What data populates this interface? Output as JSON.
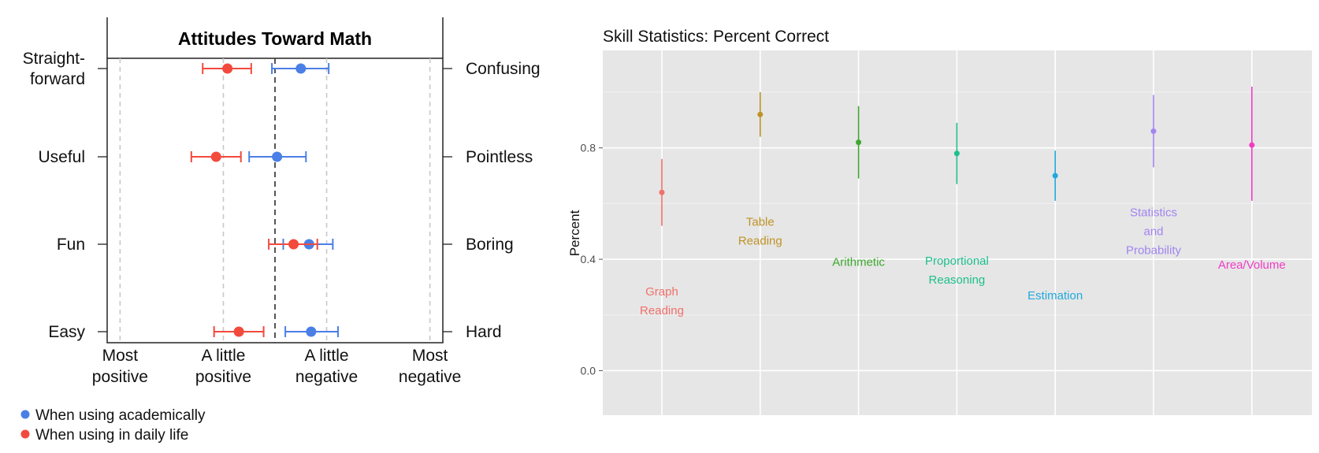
{
  "chart_data": [
    {
      "type": "dot-errorbar",
      "title": "Attitudes Toward Math",
      "left_labels": [
        "Straight-\nforward",
        "Useful",
        "Fun",
        "Easy"
      ],
      "right_labels": [
        "Confusing",
        "Pointless",
        "Boring",
        "Hard"
      ],
      "x_ticks": [
        {
          "value": 1,
          "label": "Most\npositive"
        },
        {
          "value": 2,
          "label": "A little\npositive"
        },
        {
          "value": 3,
          "label": "A little\nnegative"
        },
        {
          "value": 4,
          "label": "Most\nnegative"
        }
      ],
      "xlim": [
        0.875,
        4.125
      ],
      "midline": 2.5,
      "series": [
        {
          "name": "When using academically",
          "color": "#4a7fe6",
          "values": [
            2.75,
            2.52,
            2.83,
            2.85
          ],
          "lower": [
            2.47,
            2.25,
            2.58,
            2.6
          ],
          "upper": [
            3.02,
            2.8,
            3.06,
            3.11
          ]
        },
        {
          "name": "When using in daily life",
          "color": "#f24a3d",
          "values": [
            2.04,
            1.93,
            2.68,
            2.15
          ],
          "lower": [
            1.8,
            1.69,
            2.44,
            1.91
          ],
          "upper": [
            2.27,
            2.17,
            2.91,
            2.39
          ]
        }
      ],
      "legend_position": "bottom-left"
    },
    {
      "type": "dot-errorbar",
      "title": "Skill Statistics: Percent Correct",
      "ylabel": "Percent",
      "ylim": [
        -0.16,
        1.15
      ],
      "y_ticks": [
        {
          "value": 0.0,
          "label": "0.0"
        },
        {
          "value": 0.4,
          "label": "0.4"
        },
        {
          "value": 0.8,
          "label": "0.8"
        }
      ],
      "categories": [
        {
          "label": "Graph\nReading",
          "color": "#f0706a",
          "value": 0.64,
          "lower": 0.52,
          "upper": 0.76,
          "label_y": 0.25
        },
        {
          "label": "Table\nReading",
          "color": "#bf9325",
          "value": 0.92,
          "lower": 0.84,
          "upper": 1.0,
          "label_y": 0.5
        },
        {
          "label": "Arithmetic",
          "color": "#3ea82f",
          "value": 0.82,
          "lower": 0.69,
          "upper": 0.95,
          "label_y": 0.39
        },
        {
          "label": "Proportional\nReasoning",
          "color": "#1dbf8c",
          "value": 0.78,
          "lower": 0.67,
          "upper": 0.89,
          "label_y": 0.36
        },
        {
          "label": "Estimation",
          "color": "#20a9dd",
          "value": 0.7,
          "lower": 0.61,
          "upper": 0.79,
          "label_y": 0.27
        },
        {
          "label": "Statistics\nand\nProbability",
          "color": "#a285f0",
          "value": 0.86,
          "lower": 0.73,
          "upper": 0.99,
          "label_y": 0.5
        },
        {
          "label": "Area/Volume",
          "color": "#f03cc5",
          "value": 0.81,
          "lower": 0.61,
          "upper": 1.02,
          "label_y": 0.38
        }
      ],
      "grid": true,
      "background": "#e6e6e6"
    }
  ]
}
